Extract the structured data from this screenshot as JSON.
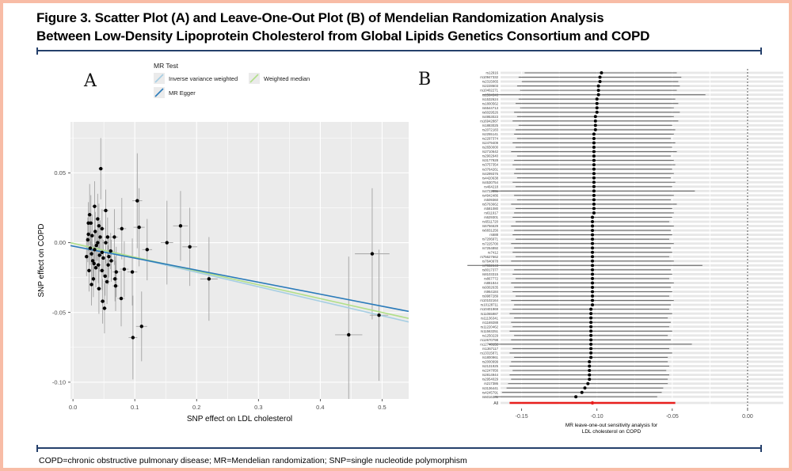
{
  "figure": {
    "title_line1": "Figure 3. Scatter Plot (A) and Leave-One-Out Plot (B) of Mendelian Randomization Analysis",
    "title_line2": "Between Low-Density Lipoprotein Cholesterol from Global Lipids Genetics Consortium and COPD",
    "footnote": "COPD=chronic obstructive pulmonary disease; MR=Mendelian randomization; SNP=single nucleotide polymorphism",
    "panel_a_label": "A",
    "panel_b_label": "B"
  },
  "colors": {
    "border": "#f8bca6",
    "rule": "#25406b",
    "plot_bg": "#ebebeb",
    "grid": "#ffffff",
    "point": "#000000",
    "error_bar": "#a3a3a3",
    "ivw_line": "#a6cee3",
    "egger_line": "#2b7bba",
    "wm_line": "#b2df8a",
    "forest_ci": "#6e6e6e",
    "forest_stripe": "#e7e7e7",
    "all_red": "#e8201e",
    "tick_text": "#4d4d4d",
    "ref_dash": "#4a4a4a"
  },
  "chart_data": [
    {
      "type": "scatter",
      "title": "",
      "xlabel": "SNP effect on LDL cholesterol",
      "ylabel": "SNP effect on COPD",
      "xlim": [
        -0.004,
        0.543
      ],
      "ylim": [
        -0.112,
        0.0865
      ],
      "xticks": [
        0.0,
        0.1,
        0.2,
        0.3,
        0.4,
        0.5
      ],
      "xtick_labels": [
        "0.0",
        "0.1",
        "0.2",
        "0.3",
        "0.4",
        "0.5"
      ],
      "yticks": [
        0.05,
        0.0,
        -0.05,
        -0.1
      ],
      "ytick_labels": [
        "0.05",
        "0.00",
        "-0.05",
        "-0.10"
      ],
      "legend": {
        "title": "MR Test",
        "entries": [
          {
            "label": "Inverse variance weighted",
            "color": "#a6cee3",
            "col": 0,
            "row": 0
          },
          {
            "label": "Weighted median",
            "color": "#b2df8a",
            "col": 1,
            "row": 0
          },
          {
            "label": "MR Egger",
            "color": "#2b7bba",
            "col": 0,
            "row": 1
          }
        ]
      },
      "series": [
        {
          "name": "Inverse variance weighted",
          "intercept": -0.0005,
          "slope": -0.1037,
          "color": "#a6cee3"
        },
        {
          "name": "Weighted median",
          "intercept": -0.0005,
          "slope": -0.099,
          "color": "#b2df8a"
        },
        {
          "name": "MR Egger",
          "intercept": -0.0025,
          "slope": -0.0861,
          "color": "#2b7bba"
        }
      ],
      "points": [
        [
          0.045,
          0.053,
          0.022,
          0.004
        ],
        [
          0.104,
          0.03,
          0.034,
          0.008
        ],
        [
          0.035,
          0.026,
          0.018,
          0.004
        ],
        [
          0.053,
          0.023,
          0.015,
          0.005
        ],
        [
          0.027,
          0.02,
          0.022,
          0.004
        ],
        [
          0.04,
          0.017,
          0.018,
          0.004
        ],
        [
          0.029,
          0.014,
          0.02,
          0.004
        ],
        [
          0.042,
          0.012,
          0.016,
          0.004
        ],
        [
          0.025,
          0.014,
          0.015,
          0.003
        ],
        [
          0.047,
          0.01,
          0.014,
          0.005
        ],
        [
          0.079,
          0.01,
          0.022,
          0.007
        ],
        [
          0.107,
          0.011,
          0.028,
          0.009
        ],
        [
          0.174,
          0.012,
          0.025,
          0.012
        ],
        [
          0.025,
          0.006,
          0.012,
          0.003
        ],
        [
          0.056,
          0.004,
          0.014,
          0.005
        ],
        [
          0.067,
          0.004,
          0.02,
          0.006
        ],
        [
          0.036,
          0.008,
          0.014,
          0.003
        ],
        [
          0.044,
          0.004,
          0.012,
          0.004
        ],
        [
          0.024,
          0.002,
          0.016,
          0.003
        ],
        [
          0.031,
          0.005,
          0.015,
          0.003
        ],
        [
          0.04,
          0.0,
          0.013,
          0.004
        ],
        [
          0.053,
          0.0,
          0.015,
          0.005
        ],
        [
          0.152,
          0.0,
          0.03,
          0.01
        ],
        [
          0.189,
          -0.003,
          0.028,
          0.012
        ],
        [
          0.12,
          -0.005,
          0.022,
          0.008
        ],
        [
          0.035,
          -0.005,
          0.012,
          0.003
        ],
        [
          0.038,
          -0.002,
          0.011,
          0.003
        ],
        [
          0.028,
          -0.004,
          0.012,
          0.003
        ],
        [
          0.061,
          -0.006,
          0.013,
          0.005
        ],
        [
          0.03,
          -0.008,
          0.013,
          0.003
        ],
        [
          0.022,
          -0.01,
          0.014,
          0.003
        ],
        [
          0.047,
          -0.007,
          0.012,
          0.004
        ],
        [
          0.049,
          -0.011,
          0.013,
          0.004
        ],
        [
          0.058,
          -0.01,
          0.015,
          0.005
        ],
        [
          0.043,
          -0.009,
          0.012,
          0.004
        ],
        [
          0.484,
          -0.008,
          0.047,
          0.028
        ],
        [
          0.032,
          -0.013,
          0.012,
          0.003
        ],
        [
          0.041,
          -0.016,
          0.013,
          0.004
        ],
        [
          0.037,
          -0.018,
          0.014,
          0.004
        ],
        [
          0.034,
          -0.015,
          0.013,
          0.003
        ],
        [
          0.057,
          -0.016,
          0.014,
          0.005
        ],
        [
          0.062,
          -0.013,
          0.015,
          0.005
        ],
        [
          0.026,
          -0.02,
          0.015,
          0.003
        ],
        [
          0.047,
          -0.02,
          0.014,
          0.004
        ],
        [
          0.07,
          -0.021,
          0.018,
          0.006
        ],
        [
          0.083,
          -0.019,
          0.02,
          0.007
        ],
        [
          0.096,
          -0.021,
          0.024,
          0.008
        ],
        [
          0.22,
          -0.026,
          0.03,
          0.014
        ],
        [
          0.033,
          -0.026,
          0.013,
          0.003
        ],
        [
          0.052,
          -0.024,
          0.014,
          0.004
        ],
        [
          0.068,
          -0.026,
          0.016,
          0.005
        ],
        [
          0.03,
          -0.03,
          0.015,
          0.003
        ],
        [
          0.069,
          -0.031,
          0.018,
          0.005
        ],
        [
          0.055,
          -0.028,
          0.016,
          0.005
        ],
        [
          0.048,
          -0.042,
          0.016,
          0.004
        ],
        [
          0.042,
          -0.033,
          0.018,
          0.004
        ],
        [
          0.051,
          -0.047,
          0.018,
          0.004
        ],
        [
          0.078,
          -0.04,
          0.02,
          0.006
        ],
        [
          0.446,
          -0.066,
          0.056,
          0.022
        ],
        [
          0.495,
          -0.052,
          0.047,
          0.015
        ],
        [
          0.111,
          -0.06,
          0.025,
          0.009
        ],
        [
          0.097,
          -0.068,
          0.03,
          0.007
        ]
      ]
    },
    {
      "type": "forest",
      "xlabel_line1": "MR leave-one-out sensitivity analysis for",
      "xlabel_line2": "LDL cholesterol on COPD",
      "xlim": [
        -0.164,
        0.0237
      ],
      "xticks": [
        -0.15,
        -0.1,
        -0.05,
        0.0
      ],
      "xtick_labels": [
        "-0.15",
        "-0.10",
        "-0.05",
        "0.00"
      ],
      "ref_line": 0.0,
      "rows": [
        [
          "rs12916",
          -0.097,
          -0.148,
          -0.047
        ],
        [
          "rs10947332",
          -0.098,
          -0.152,
          -0.044
        ],
        [
          "rs2315065",
          -0.098,
          -0.15,
          -0.046
        ],
        [
          "rs2228603",
          -0.099,
          -0.153,
          -0.045
        ],
        [
          "rs10402271",
          -0.099,
          -0.151,
          -0.047
        ],
        [
          "rs1564348",
          -0.099,
          -0.176,
          -0.028
        ],
        [
          "rs1532624",
          -0.1,
          -0.152,
          -0.048
        ],
        [
          "rs1800562",
          -0.1,
          -0.154,
          -0.046
        ],
        [
          "rs6544713",
          -0.1,
          -0.151,
          -0.049
        ],
        [
          "rs6029526",
          -0.1,
          -0.155,
          -0.045
        ],
        [
          "rs4953023",
          -0.101,
          -0.153,
          -0.049
        ],
        [
          "rs16942887",
          -0.101,
          -0.156,
          -0.046
        ],
        [
          "rs1883025",
          -0.101,
          -0.152,
          -0.05
        ],
        [
          "rs2072183",
          -0.101,
          -0.154,
          -0.048
        ],
        [
          "rs2255141",
          -0.102,
          -0.155,
          -0.049
        ],
        [
          "rs2297374",
          -0.102,
          -0.153,
          -0.051
        ],
        [
          "rs2479409",
          -0.102,
          -0.156,
          -0.048
        ],
        [
          "rs2650000",
          -0.102,
          -0.154,
          -0.05
        ],
        [
          "rs2710642",
          -0.102,
          -0.157,
          -0.047
        ],
        [
          "rs2902940",
          -0.102,
          -0.153,
          -0.051
        ],
        [
          "rs3177928",
          -0.102,
          -0.155,
          -0.049
        ],
        [
          "rs3757354",
          -0.102,
          -0.156,
          -0.048
        ],
        [
          "rs3764261",
          -0.102,
          -0.154,
          -0.05
        ],
        [
          "rs4299376",
          -0.102,
          -0.155,
          -0.049
        ],
        [
          "rs4420638",
          -0.102,
          -0.153,
          -0.051
        ],
        [
          "rs4530754",
          -0.102,
          -0.156,
          -0.048
        ],
        [
          "rs464218",
          -0.102,
          -0.154,
          -0.05
        ],
        [
          "rs4722551",
          -0.102,
          -0.17,
          -0.035
        ],
        [
          "rs4942486",
          -0.102,
          -0.155,
          -0.049
        ],
        [
          "rs509360",
          -0.102,
          -0.153,
          -0.051
        ],
        [
          "rs5763662",
          -0.102,
          -0.157,
          -0.047
        ],
        [
          "rs581080",
          -0.102,
          -0.154,
          -0.05
        ],
        [
          "rs611917",
          -0.102,
          -0.155,
          -0.049
        ],
        [
          "rs629301",
          -0.103,
          -0.156,
          -0.05
        ],
        [
          "rs6511720",
          -0.103,
          -0.154,
          -0.052
        ],
        [
          "rs6756629",
          -0.103,
          -0.157,
          -0.049
        ],
        [
          "rs6831256",
          -0.103,
          -0.155,
          -0.051
        ],
        [
          "rs688",
          -0.103,
          -0.156,
          -0.05
        ],
        [
          "rs7206971",
          -0.103,
          -0.154,
          -0.052
        ],
        [
          "rs7225700",
          -0.103,
          -0.157,
          -0.049
        ],
        [
          "rs7254892",
          -0.103,
          -0.155,
          -0.051
        ],
        [
          "rs7412",
          -0.103,
          -0.156,
          -0.05
        ],
        [
          "rs75627662",
          -0.103,
          -0.154,
          -0.052
        ],
        [
          "rs7640978",
          -0.103,
          -0.157,
          -0.049
        ],
        [
          "rs7832643",
          -0.103,
          -0.186,
          -0.03
        ],
        [
          "rs8017377",
          -0.103,
          -0.155,
          -0.051
        ],
        [
          "rs8103315",
          -0.103,
          -0.156,
          -0.05
        ],
        [
          "rs867772",
          -0.103,
          -0.154,
          -0.052
        ],
        [
          "rs881844",
          -0.103,
          -0.157,
          -0.049
        ],
        [
          "rs9302635",
          -0.103,
          -0.155,
          -0.051
        ],
        [
          "rs964184",
          -0.103,
          -0.156,
          -0.05
        ],
        [
          "rs9987289",
          -0.103,
          -0.154,
          -0.052
        ],
        [
          "rs10102164",
          -0.103,
          -0.157,
          -0.049
        ],
        [
          "rs10128711",
          -0.103,
          -0.155,
          -0.051
        ],
        [
          "rs10401969",
          -0.104,
          -0.156,
          -0.052
        ],
        [
          "rs11065987",
          -0.104,
          -0.158,
          -0.05
        ],
        [
          "rs11136341",
          -0.104,
          -0.155,
          -0.053
        ],
        [
          "rs1169288",
          -0.104,
          -0.157,
          -0.051
        ],
        [
          "rs11220462",
          -0.104,
          -0.156,
          -0.052
        ],
        [
          "rs11563251",
          -0.104,
          -0.158,
          -0.05
        ],
        [
          "rs1250229",
          -0.104,
          -0.155,
          -0.053
        ],
        [
          "rs12670798",
          -0.104,
          -0.157,
          -0.051
        ],
        [
          "rs12748152",
          -0.104,
          -0.172,
          -0.037
        ],
        [
          "rs1367117",
          -0.104,
          -0.156,
          -0.052
        ],
        [
          "rs13315871",
          -0.104,
          -0.158,
          -0.05
        ],
        [
          "rs1800961",
          -0.104,
          -0.155,
          -0.053
        ],
        [
          "rs2000999",
          -0.105,
          -0.157,
          -0.053
        ],
        [
          "rs2131925",
          -0.105,
          -0.158,
          -0.052
        ],
        [
          "rs2247056",
          -0.105,
          -0.156,
          -0.054
        ],
        [
          "rs2814944",
          -0.105,
          -0.158,
          -0.052
        ],
        [
          "rs2954029",
          -0.105,
          -0.157,
          -0.053
        ],
        [
          "rs217386",
          -0.106,
          -0.159,
          -0.053
        ],
        [
          "rs3136441",
          -0.108,
          -0.16,
          -0.056
        ],
        [
          "rs4245791",
          -0.11,
          -0.163,
          -0.057
        ],
        [
          "rs6016381",
          -0.114,
          -0.168,
          -0.06
        ]
      ],
      "all_row": {
        "label": "All",
        "est": -0.103,
        "lo": -0.158,
        "hi": -0.048
      }
    }
  ]
}
